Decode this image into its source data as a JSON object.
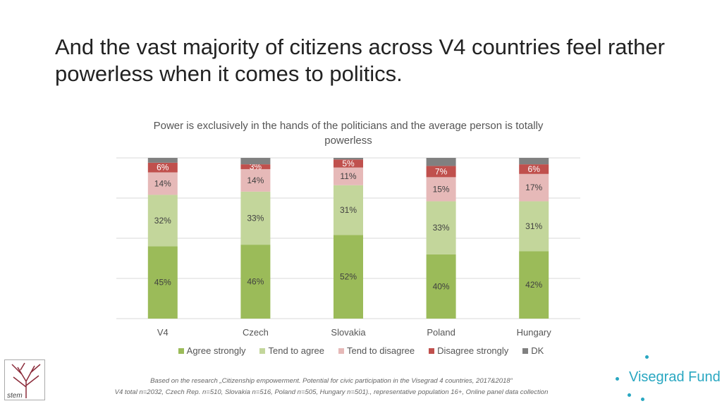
{
  "slide": {
    "title": "And the vast majority of citizens across V4 countries feel rather powerless when it comes to politics.",
    "footnote_line1": "Based on the research „Citizenship empowerment. Potential for civic participation in the Visegrad 4 countries, 2017&2018“",
    "footnote_line2": "V4 total n=2032, Czech Rep. n=510, Slovakia n=516, Poland n=505, Hungary n=501)., representative population 16+, Online panel data collection",
    "brand": "Visegrad Fund",
    "logo_text": "stem"
  },
  "chart_data": {
    "type": "bar",
    "stacked": true,
    "title": "Power is exclusively in the hands of the politicians and the average person is totally powerless",
    "categories": [
      "V4",
      "Czech",
      "Slovakia",
      "Poland",
      "Hungary"
    ],
    "ylim": [
      0,
      100
    ],
    "grid": true,
    "legend": "bottom",
    "series": [
      {
        "name": "Agree strongly",
        "color": "#9bbb59",
        "values": [
          45,
          46,
          52,
          40,
          42
        ],
        "labels": [
          "45%",
          "46%",
          "52%",
          "40%",
          "42%"
        ]
      },
      {
        "name": "Tend to agree",
        "color": "#c3d69b",
        "values": [
          32,
          33,
          31,
          33,
          31
        ],
        "labels": [
          "32%",
          "33%",
          "31%",
          "33%",
          "31%"
        ]
      },
      {
        "name": "Tend to disagree",
        "color": "#e6b9b8",
        "values": [
          14,
          14,
          11,
          15,
          17
        ],
        "labels": [
          "14%",
          "14%",
          "11%",
          "15%",
          "17%"
        ]
      },
      {
        "name": "Disagree strongly",
        "color": "#c0504d",
        "values": [
          6,
          3,
          5,
          7,
          6
        ],
        "labels": [
          "6%",
          "3%",
          "5%",
          "7%",
          "6%"
        ]
      },
      {
        "name": "DK",
        "color": "#808080",
        "values": [
          3,
          4,
          1,
          5,
          4
        ],
        "labels": []
      }
    ]
  }
}
